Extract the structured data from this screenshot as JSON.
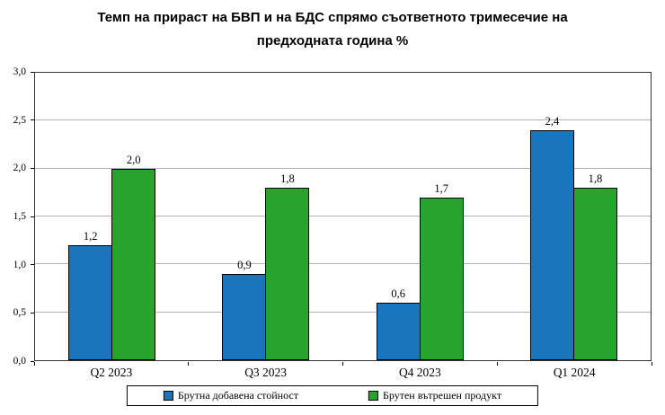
{
  "chart_data": {
    "type": "bar",
    "title": "Темп на прираст на БВП и на БДС спрямо съответното тримесечие на предходната година %",
    "title_lines": [
      "Темп на прираст на БВП и на БДС спрямо съответното тримесечие на",
      "предходната година %"
    ],
    "categories": [
      "Q2 2023",
      "Q3 2023",
      "Q4 2023",
      "Q1 2024"
    ],
    "series": [
      {
        "name": "Брутна добавена стойност",
        "color": "#1B75BC",
        "values": [
          1.2,
          0.9,
          0.6,
          2.4
        ],
        "labels": [
          "1,2",
          "0,9",
          "0,6",
          "2,4"
        ]
      },
      {
        "name": "Брутен вътрешен продукт",
        "color": "#28A32C",
        "values": [
          2.0,
          1.8,
          1.7,
          1.8
        ],
        "labels": [
          "2,0",
          "1,8",
          "1,7",
          "1,8"
        ]
      }
    ],
    "ylim": [
      0,
      3
    ],
    "ytick_step": 0.5,
    "yticks": [
      "3,0",
      "2,5",
      "2,0",
      "1,5",
      "1,0",
      "0,5",
      "0,0"
    ],
    "grid": true,
    "legend_position": "bottom",
    "colors": {
      "bar_border": "#000000",
      "gridline": "#b3b3b3",
      "plot_border": "#333333"
    }
  }
}
